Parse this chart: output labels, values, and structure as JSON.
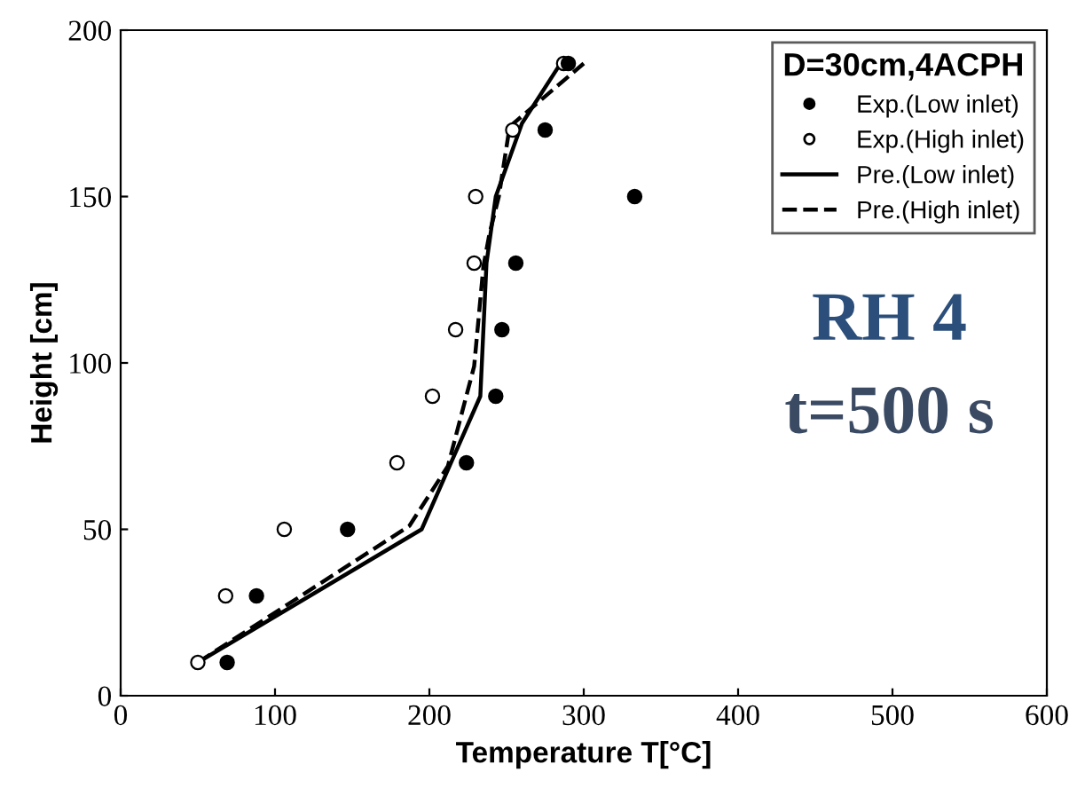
{
  "chart_data": {
    "type": "scatter",
    "xlabel": "Temperature T[°C]",
    "ylabel": "Height [cm]",
    "legend_title": "D=30cm,4ACPH",
    "legend": "top right",
    "grid": false,
    "xlim": [
      0,
      600
    ],
    "xticks": [
      0,
      100,
      200,
      300,
      400,
      500,
      600
    ],
    "ylim": [
      0,
      200
    ],
    "yticks": [
      0,
      50,
      100,
      150,
      200
    ],
    "series": [
      {
        "name": "Exp.(Low inlet)",
        "marker": "circle",
        "color": "#000000",
        "x": [
          69,
          88,
          147,
          224,
          243,
          247,
          256,
          275,
          290,
          333
        ],
        "values": [
          10,
          30,
          50,
          70,
          90,
          110,
          130,
          170,
          190,
          150
        ]
      },
      {
        "name": "Exp.(High inlet)",
        "marker": "circle",
        "color": "#ffffff",
        "x": [
          50,
          68,
          106,
          179,
          202,
          217,
          229,
          230,
          254,
          287
        ],
        "values": [
          10,
          30,
          50,
          70,
          90,
          110,
          130,
          150,
          170,
          190
        ]
      },
      {
        "name": "Pre.(Low inlet)",
        "type": "line",
        "line_style": "solid",
        "color": "#000000",
        "x": [
          50,
          195,
          233,
          237,
          243,
          260,
          285
        ],
        "values": [
          10,
          50,
          90,
          130,
          150,
          172,
          190
        ]
      },
      {
        "name": "Pre.(High inlet)",
        "type": "line",
        "line_style": "dashed",
        "color": "#000000",
        "x": [
          50,
          187,
          212,
          229,
          235,
          239,
          245,
          252,
          300
        ],
        "values": [
          10,
          51,
          69,
          99,
          129,
          139,
          150,
          171,
          190
        ]
      }
    ],
    "annotations": [
      "RH 4",
      "t=500 s"
    ]
  }
}
